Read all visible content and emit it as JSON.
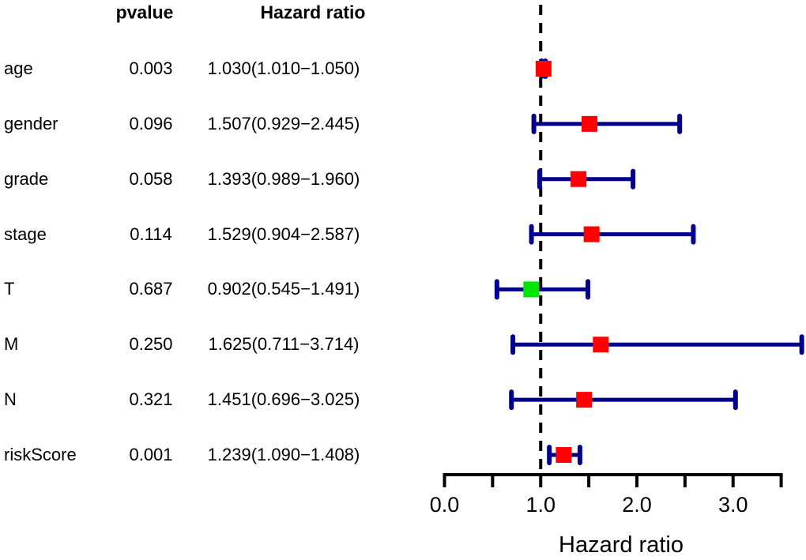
{
  "table": {
    "col_pvalue": "pvalue",
    "col_hazard_ratio": "Hazard ratio"
  },
  "chart_data": {
    "type": "scatter",
    "variant": "forest-plot",
    "title": "",
    "xlabel": "Hazard ratio",
    "xlim": [
      0.0,
      3.5
    ],
    "grid": false,
    "reference_line_x": 1.0,
    "x_ticks": [
      0.0,
      0.5,
      1.0,
      1.5,
      2.0,
      2.5,
      3.0,
      3.5
    ],
    "x_tick_labels": [
      {
        "value": 0.0,
        "label": "0.0"
      },
      {
        "value": 1.0,
        "label": "1.0"
      },
      {
        "value": 2.0,
        "label": "2.0"
      },
      {
        "value": 3.0,
        "label": "3.0"
      }
    ],
    "rows": [
      {
        "label": "age",
        "pvalue": "0.003",
        "hr_text": "1.030(1.010−1.050)",
        "hr": 1.03,
        "ci_low": 1.01,
        "ci_high": 1.05,
        "box_color": "#ff0000"
      },
      {
        "label": "gender",
        "pvalue": "0.096",
        "hr_text": "1.507(0.929−2.445)",
        "hr": 1.507,
        "ci_low": 0.929,
        "ci_high": 2.445,
        "box_color": "#ff0000"
      },
      {
        "label": "grade",
        "pvalue": "0.058",
        "hr_text": "1.393(0.989−1.960)",
        "hr": 1.393,
        "ci_low": 0.989,
        "ci_high": 1.96,
        "box_color": "#ff0000"
      },
      {
        "label": "stage",
        "pvalue": "0.114",
        "hr_text": "1.529(0.904−2.587)",
        "hr": 1.529,
        "ci_low": 0.904,
        "ci_high": 2.587,
        "box_color": "#ff0000"
      },
      {
        "label": "T",
        "pvalue": "0.687",
        "hr_text": "0.902(0.545−1.491)",
        "hr": 0.902,
        "ci_low": 0.545,
        "ci_high": 1.491,
        "box_color": "#00e600"
      },
      {
        "label": "M",
        "pvalue": "0.250",
        "hr_text": "1.625(0.711−3.714)",
        "hr": 1.625,
        "ci_low": 0.711,
        "ci_high": 3.714,
        "box_color": "#ff0000"
      },
      {
        "label": "N",
        "pvalue": "0.321",
        "hr_text": "1.451(0.696−3.025)",
        "hr": 1.451,
        "ci_low": 0.696,
        "ci_high": 3.025,
        "box_color": "#ff0000"
      },
      {
        "label": "riskScore",
        "pvalue": "0.001",
        "hr_text": "1.239(1.090−1.408)",
        "hr": 1.239,
        "ci_low": 1.09,
        "ci_high": 1.408,
        "box_color": "#ff0000"
      }
    ],
    "colors": {
      "ci_bar": "#00008b",
      "risk_box": "#ff0000",
      "protective_box": "#00e600",
      "reference_line": "#000000",
      "axis": "#000000"
    }
  }
}
